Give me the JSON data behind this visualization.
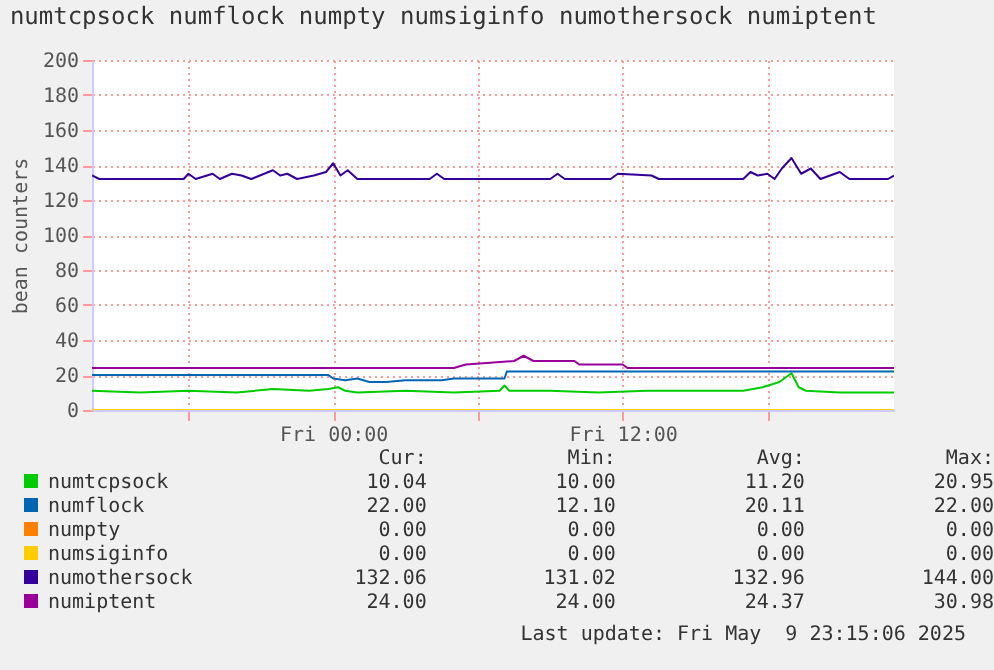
{
  "chart_data": {
    "type": "line",
    "title": "numtcpsock numflock numpty numsiginfo numothersock numiptent",
    "ylabel": "bean counters",
    "xlim": [
      "2025-05-08T14:00",
      "2025-05-09T23:15"
    ],
    "xticks": [
      {
        "value": "2025-05-08T18:00",
        "label": null
      },
      {
        "value": "2025-05-09T00:00",
        "label": "Fri 00:00"
      },
      {
        "value": "2025-05-09T06:00",
        "label": null
      },
      {
        "value": "2025-05-09T12:00",
        "label": "Fri 12:00"
      },
      {
        "value": "2025-05-09T18:00",
        "label": null
      }
    ],
    "ylim": [
      0,
      200
    ],
    "yticks": [
      0,
      20,
      40,
      60,
      80,
      100,
      120,
      140,
      160,
      180,
      200
    ],
    "grid": true,
    "legend": "bottom",
    "series": [
      {
        "name": "numtcpsock",
        "color": "#00cc00",
        "x": [
          "2025-05-08T14:00",
          "2025-05-08T16:00",
          "2025-05-08T18:00",
          "2025-05-08T20:00",
          "2025-05-08T21:30",
          "2025-05-08T23:00",
          "2025-05-08T23:48",
          "2025-05-09T00:12",
          "2025-05-09T00:30",
          "2025-05-09T01:00",
          "2025-05-09T03:00",
          "2025-05-09T05:00",
          "2025-05-09T06:54",
          "2025-05-09T07:06",
          "2025-05-09T07:18",
          "2025-05-09T09:00",
          "2025-05-09T11:00",
          "2025-05-09T13:00",
          "2025-05-09T15:00",
          "2025-05-09T17:00",
          "2025-05-09T17:48",
          "2025-05-09T18:30",
          "2025-05-09T19:00",
          "2025-05-09T19:18",
          "2025-05-09T19:36",
          "2025-05-09T21:00",
          "2025-05-09T23:15"
        ],
        "values": [
          11,
          10,
          11,
          10,
          12,
          11,
          12,
          13,
          11,
          10,
          11,
          10,
          11,
          14,
          11,
          11,
          10,
          11,
          11,
          11,
          13,
          16,
          21,
          13,
          11,
          10,
          10
        ]
      },
      {
        "name": "numflock",
        "color": "#0066b3",
        "x": [
          "2025-05-08T14:00",
          "2025-05-08T23:48",
          "2025-05-09T00:00",
          "2025-05-09T00:30",
          "2025-05-09T01:00",
          "2025-05-09T01:30",
          "2025-05-09T02:12",
          "2025-05-09T03:00",
          "2025-05-09T04:30",
          "2025-05-09T05:00",
          "2025-05-09T06:00",
          "2025-05-09T07:06",
          "2025-05-09T07:12",
          "2025-05-09T23:15"
        ],
        "values": [
          20,
          20,
          18,
          17,
          18,
          16,
          16,
          17,
          17,
          18,
          18,
          18,
          22,
          22
        ]
      },
      {
        "name": "numpty",
        "color": "#ff8000",
        "values": [
          null
        ]
      },
      {
        "name": "numsiginfo",
        "color": "#ffcc00",
        "x": [
          "2025-05-08T14:00",
          "2025-05-09T23:15"
        ],
        "values": [
          0,
          0
        ]
      },
      {
        "name": "numothersock",
        "color": "#330099",
        "x": [
          "2025-05-08T14:00",
          "2025-05-08T14:18",
          "2025-05-08T17:48",
          "2025-05-08T18:00",
          "2025-05-08T18:18",
          "2025-05-08T19:00",
          "2025-05-08T19:18",
          "2025-05-08T19:48",
          "2025-05-08T20:12",
          "2025-05-08T20:36",
          "2025-05-08T21:30",
          "2025-05-08T21:48",
          "2025-05-08T22:06",
          "2025-05-08T22:30",
          "2025-05-08T23:12",
          "2025-05-08T23:42",
          "2025-05-09T00:00",
          "2025-05-09T00:18",
          "2025-05-09T00:36",
          "2025-05-09T01:00",
          "2025-05-09T04:00",
          "2025-05-09T04:18",
          "2025-05-09T04:36",
          "2025-05-09T09:00",
          "2025-05-09T09:18",
          "2025-05-09T09:36",
          "2025-05-09T11:30",
          "2025-05-09T11:48",
          "2025-05-09T13:12",
          "2025-05-09T13:30",
          "2025-05-09T17:00",
          "2025-05-09T17:18",
          "2025-05-09T17:36",
          "2025-05-09T18:00",
          "2025-05-09T18:18",
          "2025-05-09T18:36",
          "2025-05-09T19:00",
          "2025-05-09T19:24",
          "2025-05-09T19:48",
          "2025-05-09T20:12",
          "2025-05-09T21:00",
          "2025-05-09T21:24",
          "2025-05-09T23:00",
          "2025-05-09T23:15"
        ],
        "values": [
          134,
          132,
          132,
          135,
          132,
          135,
          132,
          135,
          134,
          132,
          137,
          134,
          135,
          132,
          134,
          136,
          141,
          134,
          137,
          132,
          132,
          135,
          132,
          132,
          135,
          132,
          132,
          135,
          134,
          132,
          132,
          136,
          134,
          135,
          132,
          138,
          144,
          135,
          138,
          132,
          136,
          132,
          132,
          134
        ]
      },
      {
        "name": "numiptent",
        "color": "#990099",
        "x": [
          "2025-05-08T14:00",
          "2025-05-09T05:00",
          "2025-05-09T05:30",
          "2025-05-09T06:30",
          "2025-05-09T07:30",
          "2025-05-09T07:54",
          "2025-05-09T08:18",
          "2025-05-09T10:00",
          "2025-05-09T10:12",
          "2025-05-09T12:00",
          "2025-05-09T12:12",
          "2025-05-09T23:15"
        ],
        "values": [
          24,
          24,
          26,
          27,
          28,
          31,
          28,
          28,
          26,
          26,
          24,
          24
        ]
      }
    ],
    "annotations": [
      "Cur:",
      "Min:",
      "Avg:",
      "Max:",
      "10.04",
      "10.00",
      "11.20",
      "20.95",
      "22.00",
      "12.10",
      "20.11",
      "22.00",
      "0.00",
      "0.00",
      "0.00",
      "0.00",
      "0.00",
      "0.00",
      "0.00",
      "0.00",
      "132.06",
      "131.02",
      "132.96",
      "144.00",
      "24.00",
      "24.00",
      "24.37",
      "30.98",
      "Last update: Fri May  9 23:15:06 2025"
    ]
  }
}
